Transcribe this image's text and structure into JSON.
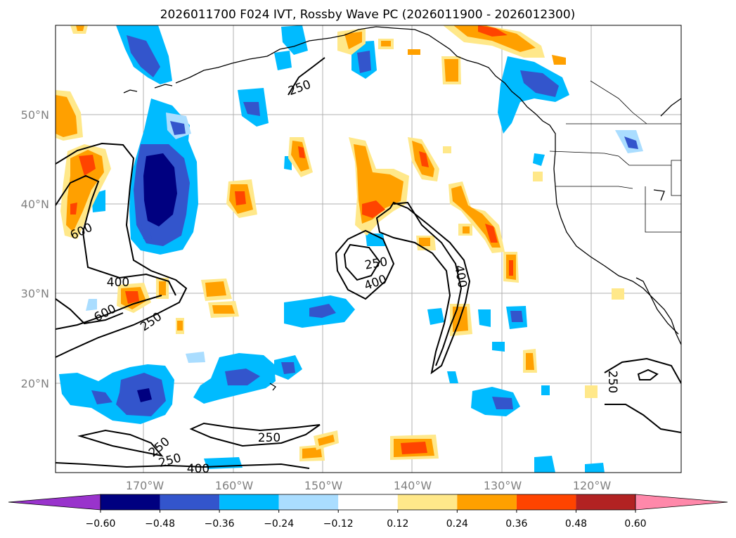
{
  "title": "2026011700 F024 IVT, Rossby Wave PC (2026011900 - 2026012300)",
  "lat_labels": [
    "50°N",
    "40°N",
    "30°N",
    "20°N"
  ],
  "lon_labels": [
    "170°W",
    "160°W",
    "150°W",
    "140°W",
    "130°W",
    "120°W"
  ],
  "colorbar": {
    "ticks": [
      "−0.60",
      "−0.48",
      "−0.36",
      "−0.24",
      "−0.12",
      "0.12",
      "0.24",
      "0.36",
      "0.48",
      "0.60"
    ],
    "under_color": "#9933cc",
    "colors": [
      "#000080",
      "#3355cc",
      "#00bbff",
      "#aaddff",
      "#ffffff",
      "#ffe88a",
      "#ffa000",
      "#ff4400",
      "#b22222"
    ],
    "over_color": "#ff88aa"
  },
  "contour_labels": {
    "c250_a": "250",
    "c600_a": "600",
    "c400_a": "400",
    "c600_b": "600",
    "c250_b": "250",
    "c250_c": "250",
    "c400_b": "400",
    "c400_c": "400",
    "c250_d": "250",
    "c250_e": "250",
    "c250_f": "250",
    "c400_d": "400",
    "c250_g": "250"
  },
  "colors": {
    "gridline": "#b0b0b0",
    "axis_label": "#808080"
  }
}
